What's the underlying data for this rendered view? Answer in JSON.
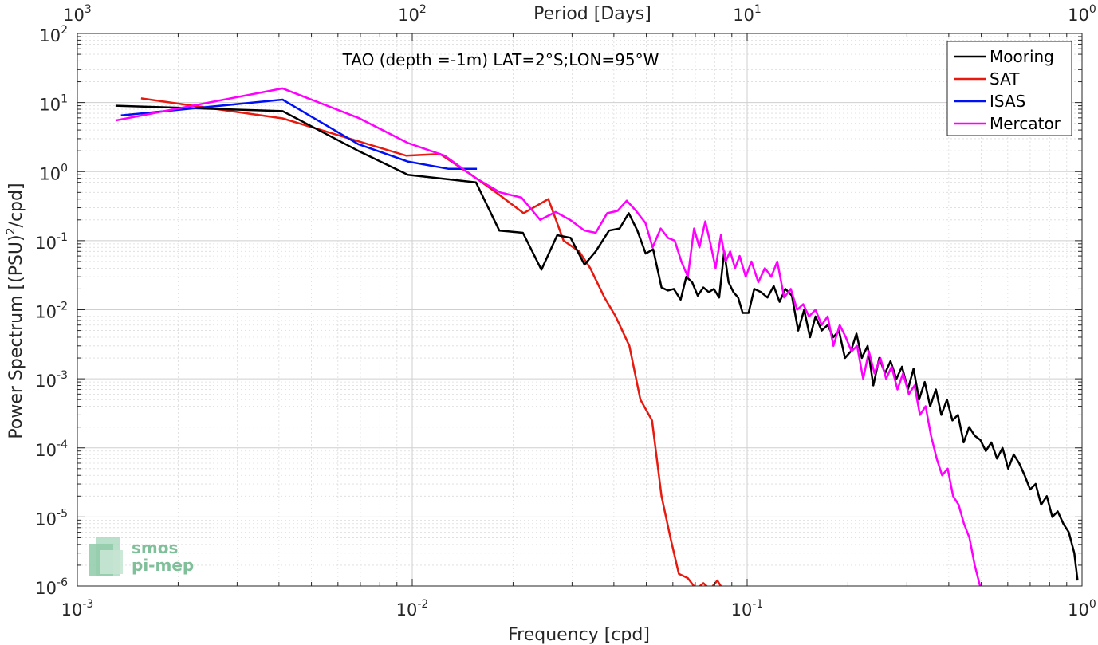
{
  "chart_data": {
    "type": "line",
    "title": "TAO (depth =-1m) LAT=2°S;LON=95°W",
    "xlabel": "Frequency [cpd]",
    "ylabel": "Power Spectrum [(PSU)",
    "ylabel_sup": "2",
    "ylabel_tail": "/cpd]",
    "top_axis_label": "Period [Days]",
    "x_scale": "log",
    "y_scale": "log",
    "xlim": [
      0.001,
      1
    ],
    "ylim": [
      1e-06,
      100
    ],
    "grid": true,
    "legend_position": "top-right",
    "x_ticks": [
      {
        "base": "10",
        "exp": "-3",
        "value": 0.001
      },
      {
        "base": "10",
        "exp": "-2",
        "value": 0.01
      },
      {
        "base": "10",
        "exp": "-1",
        "value": 0.1
      },
      {
        "base": "10",
        "exp": "0",
        "value": 1
      }
    ],
    "top_ticks": [
      {
        "base": "10",
        "exp": "3",
        "value": 0.001
      },
      {
        "base": "10",
        "exp": "2",
        "value": 0.01
      },
      {
        "base": "10",
        "exp": "1",
        "value": 0.1
      },
      {
        "base": "10",
        "exp": "0",
        "value": 1
      }
    ],
    "y_ticks": [
      {
        "base": "10",
        "exp": "2",
        "value": 100
      },
      {
        "base": "10",
        "exp": "1",
        "value": 10
      },
      {
        "base": "10",
        "exp": "0",
        "value": 1
      },
      {
        "base": "10",
        "exp": "-1",
        "value": 0.1
      },
      {
        "base": "10",
        "exp": "-2",
        "value": 0.01
      },
      {
        "base": "10",
        "exp": "-3",
        "value": 0.001
      },
      {
        "base": "10",
        "exp": "-4",
        "value": 0.0001
      },
      {
        "base": "10",
        "exp": "-5",
        "value": 1e-05
      },
      {
        "base": "10",
        "exp": "-6",
        "value": 1e-06
      }
    ],
    "series": [
      {
        "name": "Mooring",
        "color": "#000000",
        "x": [
          0.0013,
          0.0041,
          0.0069,
          0.0097,
          0.0155,
          0.0182,
          0.0214,
          0.0243,
          0.0271,
          0.0297,
          0.0327,
          0.0353,
          0.0387,
          0.0416,
          0.0443,
          0.047,
          0.0498,
          0.0524,
          0.0555,
          0.058,
          0.0604,
          0.0633,
          0.0658,
          0.0685,
          0.0712,
          0.074,
          0.0768,
          0.0795,
          0.0825,
          0.0854,
          0.088,
          0.091,
          0.094,
          0.097,
          0.101,
          0.105,
          0.11,
          0.115,
          0.12,
          0.125,
          0.13,
          0.136,
          0.142,
          0.148,
          0.154,
          0.16,
          0.167,
          0.174,
          0.181,
          0.188,
          0.196,
          0.204,
          0.212,
          0.22,
          0.229,
          0.238,
          0.248,
          0.258,
          0.268,
          0.279,
          0.29,
          0.302,
          0.314,
          0.326,
          0.339,
          0.352,
          0.366,
          0.38,
          0.395,
          0.41,
          0.426,
          0.443,
          0.46,
          0.478,
          0.497,
          0.516,
          0.536,
          0.557,
          0.579,
          0.602,
          0.625,
          0.649,
          0.674,
          0.7,
          0.727,
          0.755,
          0.785,
          0.815,
          0.846,
          0.879,
          0.913,
          0.948,
          0.97
        ],
        "y": [
          9,
          7.5,
          2,
          0.9,
          0.7,
          0.14,
          0.13,
          0.038,
          0.12,
          0.11,
          0.045,
          0.07,
          0.14,
          0.15,
          0.25,
          0.14,
          0.065,
          0.075,
          0.021,
          0.019,
          0.02,
          0.014,
          0.03,
          0.025,
          0.016,
          0.021,
          0.018,
          0.02,
          0.015,
          0.07,
          0.025,
          0.018,
          0.015,
          0.009,
          0.009,
          0.02,
          0.018,
          0.015,
          0.022,
          0.013,
          0.02,
          0.016,
          0.005,
          0.01,
          0.004,
          0.008,
          0.005,
          0.006,
          0.004,
          0.005,
          0.002,
          0.0025,
          0.0045,
          0.002,
          0.003,
          0.0008,
          0.002,
          0.0012,
          0.0018,
          0.001,
          0.0015,
          0.0007,
          0.0014,
          0.0005,
          0.0009,
          0.0004,
          0.0007,
          0.0003,
          0.0005,
          0.00025,
          0.0003,
          0.00012,
          0.0002,
          0.00015,
          0.00013,
          9e-05,
          0.00012,
          7e-05,
          0.0001,
          5e-05,
          8e-05,
          6e-05,
          4e-05,
          2.5e-05,
          3e-05,
          1.5e-05,
          2e-05,
          1e-05,
          1.2e-05,
          8e-06,
          6e-06,
          3e-06,
          1.2e-06
        ]
      },
      {
        "name": "SAT",
        "color": "#e8190f",
        "x": [
          0.00155,
          0.0041,
          0.0096,
          0.0121,
          0.015,
          0.018,
          0.0215,
          0.0255,
          0.0283,
          0.0315,
          0.034,
          0.0375,
          0.0405,
          0.0445,
          0.048,
          0.052,
          0.0555,
          0.059,
          0.0625,
          0.0665,
          0.0705,
          0.074,
          0.0775,
          0.0815,
          0.0845
        ],
        "y": [
          11.5,
          5.9,
          1.7,
          1.8,
          0.9,
          0.48,
          0.25,
          0.4,
          0.1,
          0.07,
          0.04,
          0.015,
          0.008,
          0.003,
          0.0005,
          0.00025,
          2e-05,
          5e-06,
          1.5e-06,
          1.3e-06,
          9e-07,
          1.1e-06,
          9e-07,
          1.2e-06,
          9e-07
        ]
      },
      {
        "name": "ISAS",
        "color": "#0010f5",
        "x": [
          0.00135,
          0.0041,
          0.0069,
          0.0097,
          0.0128,
          0.0156
        ],
        "y": [
          6.5,
          11,
          2.5,
          1.4,
          1.1,
          1.1
        ]
      },
      {
        "name": "Mercator",
        "color": "#ff00ff",
        "x": [
          0.0013,
          0.0041,
          0.0069,
          0.0097,
          0.0125,
          0.0155,
          0.0183,
          0.0212,
          0.0241,
          0.0268,
          0.0296,
          0.0327,
          0.0353,
          0.0382,
          0.041,
          0.0437,
          0.0466,
          0.0497,
          0.0522,
          0.0552,
          0.058,
          0.0608,
          0.0636,
          0.0665,
          0.0694,
          0.072,
          0.075,
          0.0777,
          0.0805,
          0.0835,
          0.0863,
          0.089,
          0.092,
          0.095,
          0.099,
          0.103,
          0.108,
          0.113,
          0.118,
          0.123,
          0.129,
          0.135,
          0.141,
          0.147,
          0.153,
          0.16,
          0.167,
          0.174,
          0.181,
          0.189,
          0.197,
          0.205,
          0.213,
          0.222,
          0.231,
          0.24,
          0.25,
          0.26,
          0.27,
          0.281,
          0.292,
          0.304,
          0.316,
          0.328,
          0.341,
          0.354,
          0.368,
          0.382,
          0.397,
          0.412,
          0.428,
          0.444,
          0.461,
          0.478,
          0.496
        ],
        "y": [
          5.5,
          16,
          6,
          2.6,
          1.7,
          0.8,
          0.5,
          0.42,
          0.2,
          0.26,
          0.2,
          0.14,
          0.13,
          0.25,
          0.27,
          0.38,
          0.27,
          0.18,
          0.08,
          0.15,
          0.11,
          0.1,
          0.05,
          0.03,
          0.15,
          0.08,
          0.19,
          0.09,
          0.04,
          0.12,
          0.05,
          0.07,
          0.04,
          0.06,
          0.03,
          0.05,
          0.025,
          0.04,
          0.03,
          0.05,
          0.015,
          0.02,
          0.01,
          0.012,
          0.008,
          0.01,
          0.006,
          0.008,
          0.003,
          0.006,
          0.004,
          0.0025,
          0.003,
          0.001,
          0.0025,
          0.0012,
          0.002,
          0.001,
          0.0015,
          0.0007,
          0.0012,
          0.0006,
          0.0008,
          0.0003,
          0.0004,
          0.00015,
          7e-05,
          4e-05,
          5e-05,
          2e-05,
          1.5e-05,
          8e-06,
          5e-06,
          2e-06,
          1e-06
        ]
      }
    ]
  },
  "logo": {
    "line1": "smos",
    "line2": "pi-mep"
  }
}
